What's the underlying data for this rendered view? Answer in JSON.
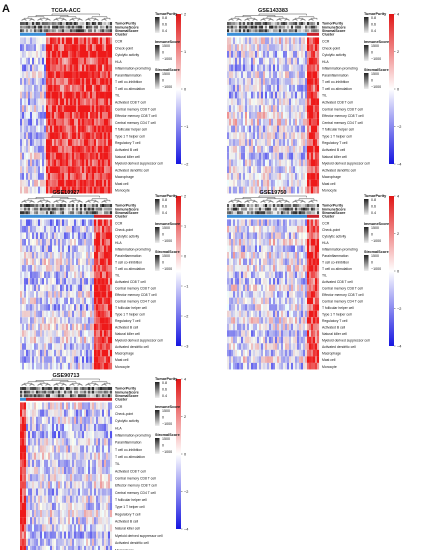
{
  "figure_label": "A",
  "colors": {
    "cluster_blue": "#3a8fd8",
    "cluster_red": "#c8202a",
    "heat_low": "#1515e0",
    "heat_mid": "#ffffff",
    "heat_high": "#e01515"
  },
  "annotation_labels": [
    "TumorPurity",
    "ImmuneScore",
    "StromalScore",
    "Cluster"
  ],
  "row_labels": [
    "CCR",
    "Check-point",
    "Cytolytic activity",
    "HLA",
    "Inflammation-promoting",
    "Parainflammation",
    "T cell co-inhibition",
    "T cell co-stimulation",
    "TIL",
    "Activated CD8 T cell",
    "Central memory CD8 T cell",
    "Effector memory CD8 T cell",
    "Central memory CD4 T cell",
    "T follicular helper cell",
    "Type 1 T helper cell",
    "Regulatory T cell",
    "Activated B cell",
    "Natural killer cell",
    "Myeloid derived suppressor cell",
    "Activated dendritic cell",
    "Macrophage",
    "Mast cell",
    "Monocyte"
  ],
  "legend": {
    "tumor_purity": {
      "title": "TumorPurity",
      "ticks": [
        "0.8",
        "0.6",
        "0.4"
      ]
    },
    "immune_score": {
      "title": "ImmuneScore",
      "ticks": [
        "1500",
        "0",
        "−1000"
      ]
    },
    "stromal_score": {
      "title": "StromalScore",
      "ticks": [
        "1500",
        "0",
        "−1000"
      ]
    }
  },
  "chart_data": [
    {
      "type": "heatmap",
      "title": "TCGA-ACC",
      "colorbar_ticks": [
        "2",
        "1",
        "0",
        "−1",
        "−2"
      ],
      "colorbar_range": [
        -2,
        2
      ],
      "cluster_split": 0.28,
      "pattern_seed": 11
    },
    {
      "type": "heatmap",
      "title": "GSE143383",
      "colorbar_ticks": [
        "4",
        "2",
        "0",
        "−2",
        "−4"
      ],
      "colorbar_range": [
        -4,
        4
      ],
      "cluster_split": 0.88,
      "pattern_seed": 23
    },
    {
      "type": "heatmap",
      "title": "GSE10927",
      "colorbar_ticks": [
        "2",
        "1",
        "0",
        "−1",
        "−2",
        "−3"
      ],
      "colorbar_range": [
        -3,
        2
      ],
      "cluster_split": 0.8,
      "pattern_seed": 37
    },
    {
      "type": "heatmap",
      "title": "GSE19750",
      "colorbar_ticks": [
        "4",
        "2",
        "0",
        "−2",
        "−4"
      ],
      "colorbar_range": [
        -4,
        4
      ],
      "cluster_split": 0.86,
      "pattern_seed": 41
    },
    {
      "type": "heatmap",
      "title": "GSE90713",
      "colorbar_ticks": [
        "4",
        "2",
        "0",
        "−2",
        "−4"
      ],
      "colorbar_range": [
        -4,
        4
      ],
      "cluster_split": 0.06,
      "pattern_seed": 53
    }
  ]
}
